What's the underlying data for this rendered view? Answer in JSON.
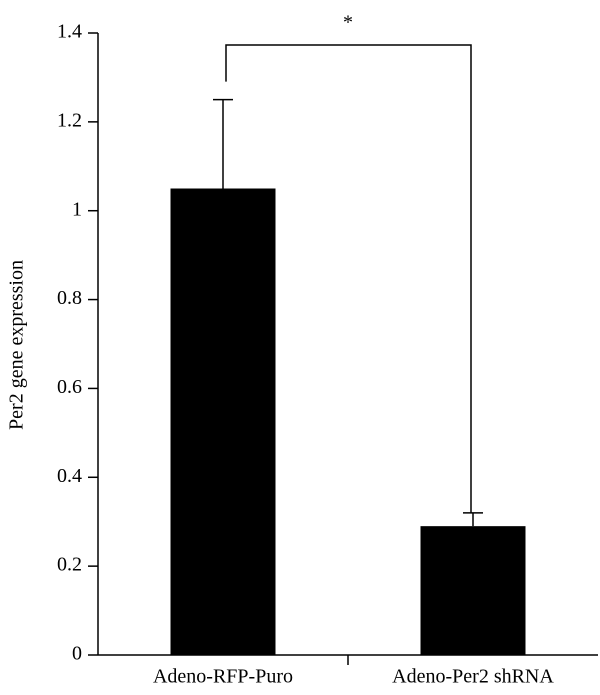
{
  "chart_data": {
    "type": "bar",
    "y_label": "Per2 gene expression",
    "categories": [
      "Adeno-RFP-Puro",
      "Adeno-Per2 shRNA"
    ],
    "values": [
      1.05,
      0.29
    ],
    "errors": [
      0.2,
      0.03
    ],
    "color": "#000000",
    "ylim": [
      0,
      1.4
    ],
    "yticks": [
      0,
      0.2,
      0.4,
      0.6,
      0.8,
      1,
      1.2,
      1.4
    ],
    "annotation": "*"
  }
}
